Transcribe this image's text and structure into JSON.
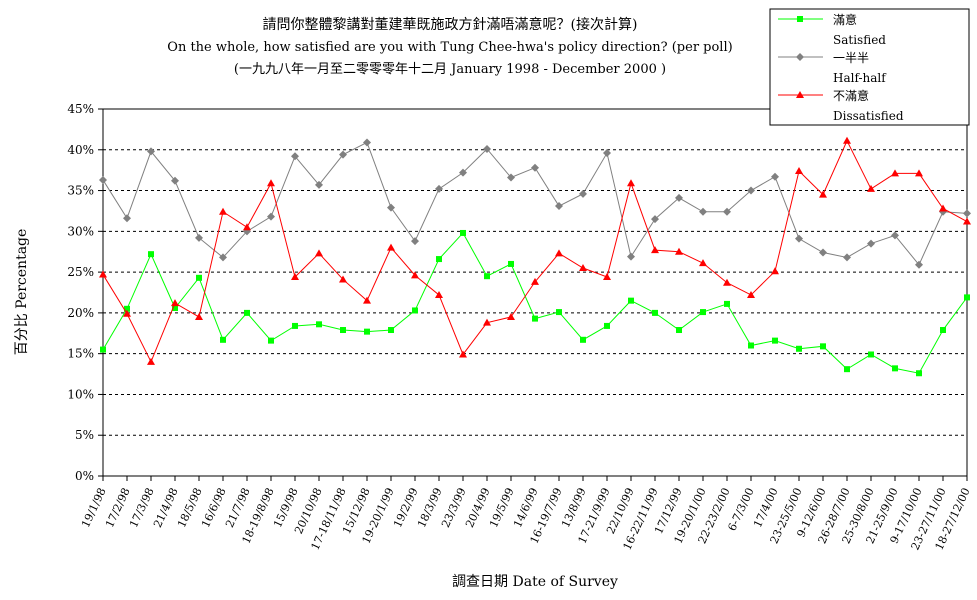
{
  "chart_data": {
    "type": "line",
    "title": "請問你整體黎講對董建華既施政方針滿唔滿意呢？(接次計算)",
    "subtitle": "On the whole, how satisfied are you with Tung Chee-hwa's policy direction? (per poll)",
    "subtitle2": "(一九九八年一月至二零零零年十二月 January 1998 - December 2000 )",
    "xlabel": "調查日期 Date of Survey",
    "ylabel": "百分比 Percentage",
    "ylim": [
      0,
      45
    ],
    "yticks": [
      "0%",
      "5%",
      "10%",
      "15%",
      "20%",
      "25%",
      "30%",
      "35%",
      "40%",
      "45%"
    ],
    "grid": "horizontal dashed",
    "legend_position": "top-right",
    "categories": [
      "19/1/98",
      "17/2/98",
      "17/3/98",
      "21/4/98",
      "18/5/98",
      "16/6/98",
      "21/7/98",
      "18-19/8/98",
      "15/9/98",
      "20/10/98",
      "17-18/11/98",
      "15/12/98",
      "19-20/1/99",
      "19/2/99",
      "18/3/99",
      "23/3/99",
      "20/4/99",
      "19/5/99",
      "14/6/99",
      "16-19/7/99",
      "13/8/99",
      "17-21/9/99",
      "22/10/99",
      "16-22/11/99",
      "17/12/99",
      "19-20/1/00",
      "22-23/2/00",
      "6-7/3/00",
      "17/4/00",
      "23-25/5/00",
      "9-12/6/00",
      "26-28/7/00",
      "25-30/8/00",
      "21-25/9/00",
      "9-17/10/00",
      "23-27/11/00",
      "18-27/12/00"
    ],
    "series": [
      {
        "name": "滿意",
        "name_en": "Satisfied",
        "color": "#00ff00",
        "marker": "square",
        "values": [
          15.5,
          20.5,
          27.2,
          20.6,
          24.3,
          16.7,
          20.0,
          16.6,
          18.4,
          18.6,
          17.9,
          17.7,
          17.9,
          20.3,
          26.6,
          29.8,
          24.5,
          26.0,
          19.3,
          20.1,
          16.7,
          18.4,
          21.5,
          20.0,
          17.9,
          20.1,
          21.1,
          16.0,
          16.6,
          15.6,
          15.9,
          13.1,
          14.9,
          13.2,
          12.6,
          17.9,
          21.9
        ]
      },
      {
        "name": "一半半",
        "name_en": "Half-half",
        "color": "#808080",
        "marker": "diamond",
        "values": [
          36.3,
          31.6,
          39.8,
          36.2,
          29.2,
          26.8,
          30.0,
          31.8,
          39.2,
          35.7,
          39.4,
          40.9,
          32.9,
          28.8,
          35.2,
          37.2,
          40.1,
          36.6,
          37.8,
          33.1,
          34.6,
          39.6,
          26.9,
          31.5,
          34.1,
          32.4,
          32.4,
          35.0,
          36.7,
          29.1,
          27.4,
          26.8,
          28.5,
          29.5,
          25.9,
          32.4,
          32.2
        ]
      },
      {
        "name": "不滿意",
        "name_en": "Dissatisfied",
        "color": "#ff0000",
        "marker": "triangle",
        "values": [
          24.7,
          19.9,
          14.0,
          21.2,
          19.5,
          32.4,
          30.5,
          35.9,
          24.4,
          27.3,
          24.1,
          21.5,
          28.0,
          24.6,
          22.2,
          14.9,
          18.8,
          19.5,
          23.8,
          27.3,
          25.5,
          24.4,
          35.9,
          27.7,
          27.5,
          26.1,
          23.7,
          22.2,
          25.1,
          37.4,
          34.5,
          41.1,
          35.2,
          37.1,
          37.1,
          32.8,
          31.2
        ]
      }
    ]
  }
}
